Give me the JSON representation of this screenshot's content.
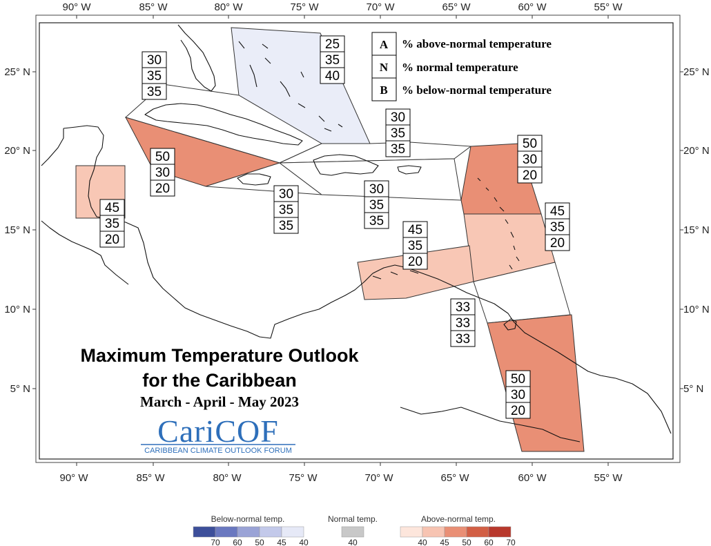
{
  "map": {
    "title_line1": "Maximum Temperature Outlook",
    "title_line2": "for the Caribbean",
    "period": "March - April - May 2023",
    "logo": {
      "name": "CariCOF",
      "subtitle": "CARIBBEAN CLIMATE OUTLOOK FORUM"
    },
    "lon_ticks": [
      "90° W",
      "85° W",
      "80° W",
      "75° W",
      "70° W",
      "65° W",
      "60° W",
      "55° W"
    ],
    "lat_ticks": [
      "25° N",
      "20° N",
      "15° N",
      "10° N",
      "5° N"
    ],
    "key": [
      {
        "letter": "A",
        "text": "% above-normal temperature"
      },
      {
        "letter": "N",
        "text": "% normal temperature"
      },
      {
        "letter": "B",
        "text": "% below-normal temperature"
      }
    ],
    "regions": [
      {
        "id": "bahamas",
        "A": "25",
        "N": "35",
        "B": "40",
        "color": "#eaedf8"
      },
      {
        "id": "cuba",
        "A": "30",
        "N": "35",
        "B": "35",
        "color": "#ffffff"
      },
      {
        "id": "cayman",
        "A": "50",
        "N": "30",
        "B": "20",
        "color": "#e98f75"
      },
      {
        "id": "belize",
        "A": "45",
        "N": "35",
        "B": "20",
        "color": "#f8c7b5"
      },
      {
        "id": "jamaica",
        "A": "30",
        "N": "35",
        "B": "35",
        "color": "#ffffff"
      },
      {
        "id": "turks-caicos",
        "A": "30",
        "N": "35",
        "B": "35",
        "color": "#ffffff"
      },
      {
        "id": "hispaniola",
        "A": "30",
        "N": "35",
        "B": "35",
        "color": "#ffffff"
      },
      {
        "id": "northern-lesser-antilles",
        "A": "50",
        "N": "30",
        "B": "20",
        "color": "#e98f75"
      },
      {
        "id": "windward-islands",
        "A": "45",
        "N": "35",
        "B": "20",
        "color": "#f8c7b5"
      },
      {
        "id": "abc-islands",
        "A": "45",
        "N": "35",
        "B": "20",
        "color": "#f8c7b5"
      },
      {
        "id": "trinidad",
        "A": "33",
        "N": "33",
        "B": "33",
        "color": "#ffffff"
      },
      {
        "id": "guianas",
        "A": "50",
        "N": "30",
        "B": "20",
        "color": "#e98f75"
      }
    ],
    "colorbar": {
      "below": {
        "title": "Below-normal temp.",
        "labels": [
          "70",
          "60",
          "50",
          "45",
          "40"
        ],
        "colors": [
          "#3d4f9a",
          "#6a78c0",
          "#9aa3d6",
          "#c3c9ea",
          "#e6e9f7"
        ]
      },
      "normal": {
        "title": "Normal temp.",
        "labels": [
          "40"
        ],
        "colors": [
          "#c8c8c8"
        ]
      },
      "above": {
        "title": "Above-normal temp.",
        "labels": [
          "40",
          "45",
          "50",
          "60",
          "70"
        ],
        "colors": [
          "#fde6dc",
          "#f7c4b2",
          "#e98f75",
          "#d25f45",
          "#b8382c"
        ]
      }
    }
  }
}
